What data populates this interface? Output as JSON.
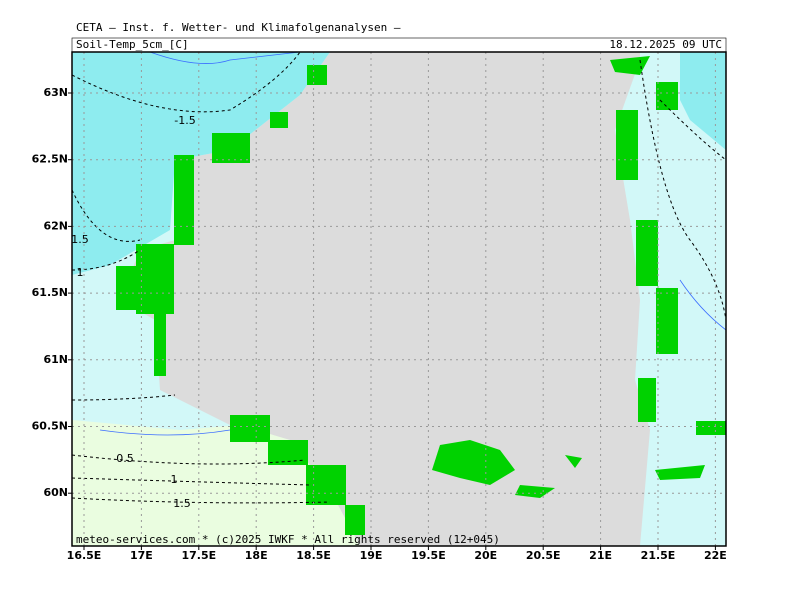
{
  "header": {
    "institute": "CETA — Inst. f. Wetter- und Klimafolgenanalysen —",
    "parameter": "Soil-Temp_5cm_[C]",
    "valid_time": "18.12.2025 09 UTC"
  },
  "map": {
    "lon_ticks": [
      {
        "value": 16.5,
        "label": "16.5E"
      },
      {
        "value": 17,
        "label": "17E"
      },
      {
        "value": 17.5,
        "label": "17.5E"
      },
      {
        "value": 18,
        "label": "18E"
      },
      {
        "value": 18.5,
        "label": "18.5E"
      },
      {
        "value": 19,
        "label": "19E"
      },
      {
        "value": 19.5,
        "label": "19.5E"
      },
      {
        "value": 20,
        "label": "20E"
      },
      {
        "value": 20.5,
        "label": "20.5E"
      },
      {
        "value": 21,
        "label": "21E"
      },
      {
        "value": 21.5,
        "label": "21.5E"
      },
      {
        "value": 22,
        "label": "22E"
      }
    ],
    "lat_ticks": [
      {
        "value": 63,
        "label": "63N"
      },
      {
        "value": 62.5,
        "label": "62.5N"
      },
      {
        "value": 62,
        "label": "62N"
      },
      {
        "value": 61.5,
        "label": "61.5N"
      },
      {
        "value": 61,
        "label": "61N"
      },
      {
        "value": 60.5,
        "label": "60.5N"
      },
      {
        "value": 60,
        "label": "60N"
      }
    ],
    "contour_labels": [
      "-1.5",
      "1.5",
      "1",
      "0.5",
      "1",
      "1.5"
    ]
  },
  "footer": "meteo-services.com * (c)2025 IWKF * All rights reserved (12+045)"
}
